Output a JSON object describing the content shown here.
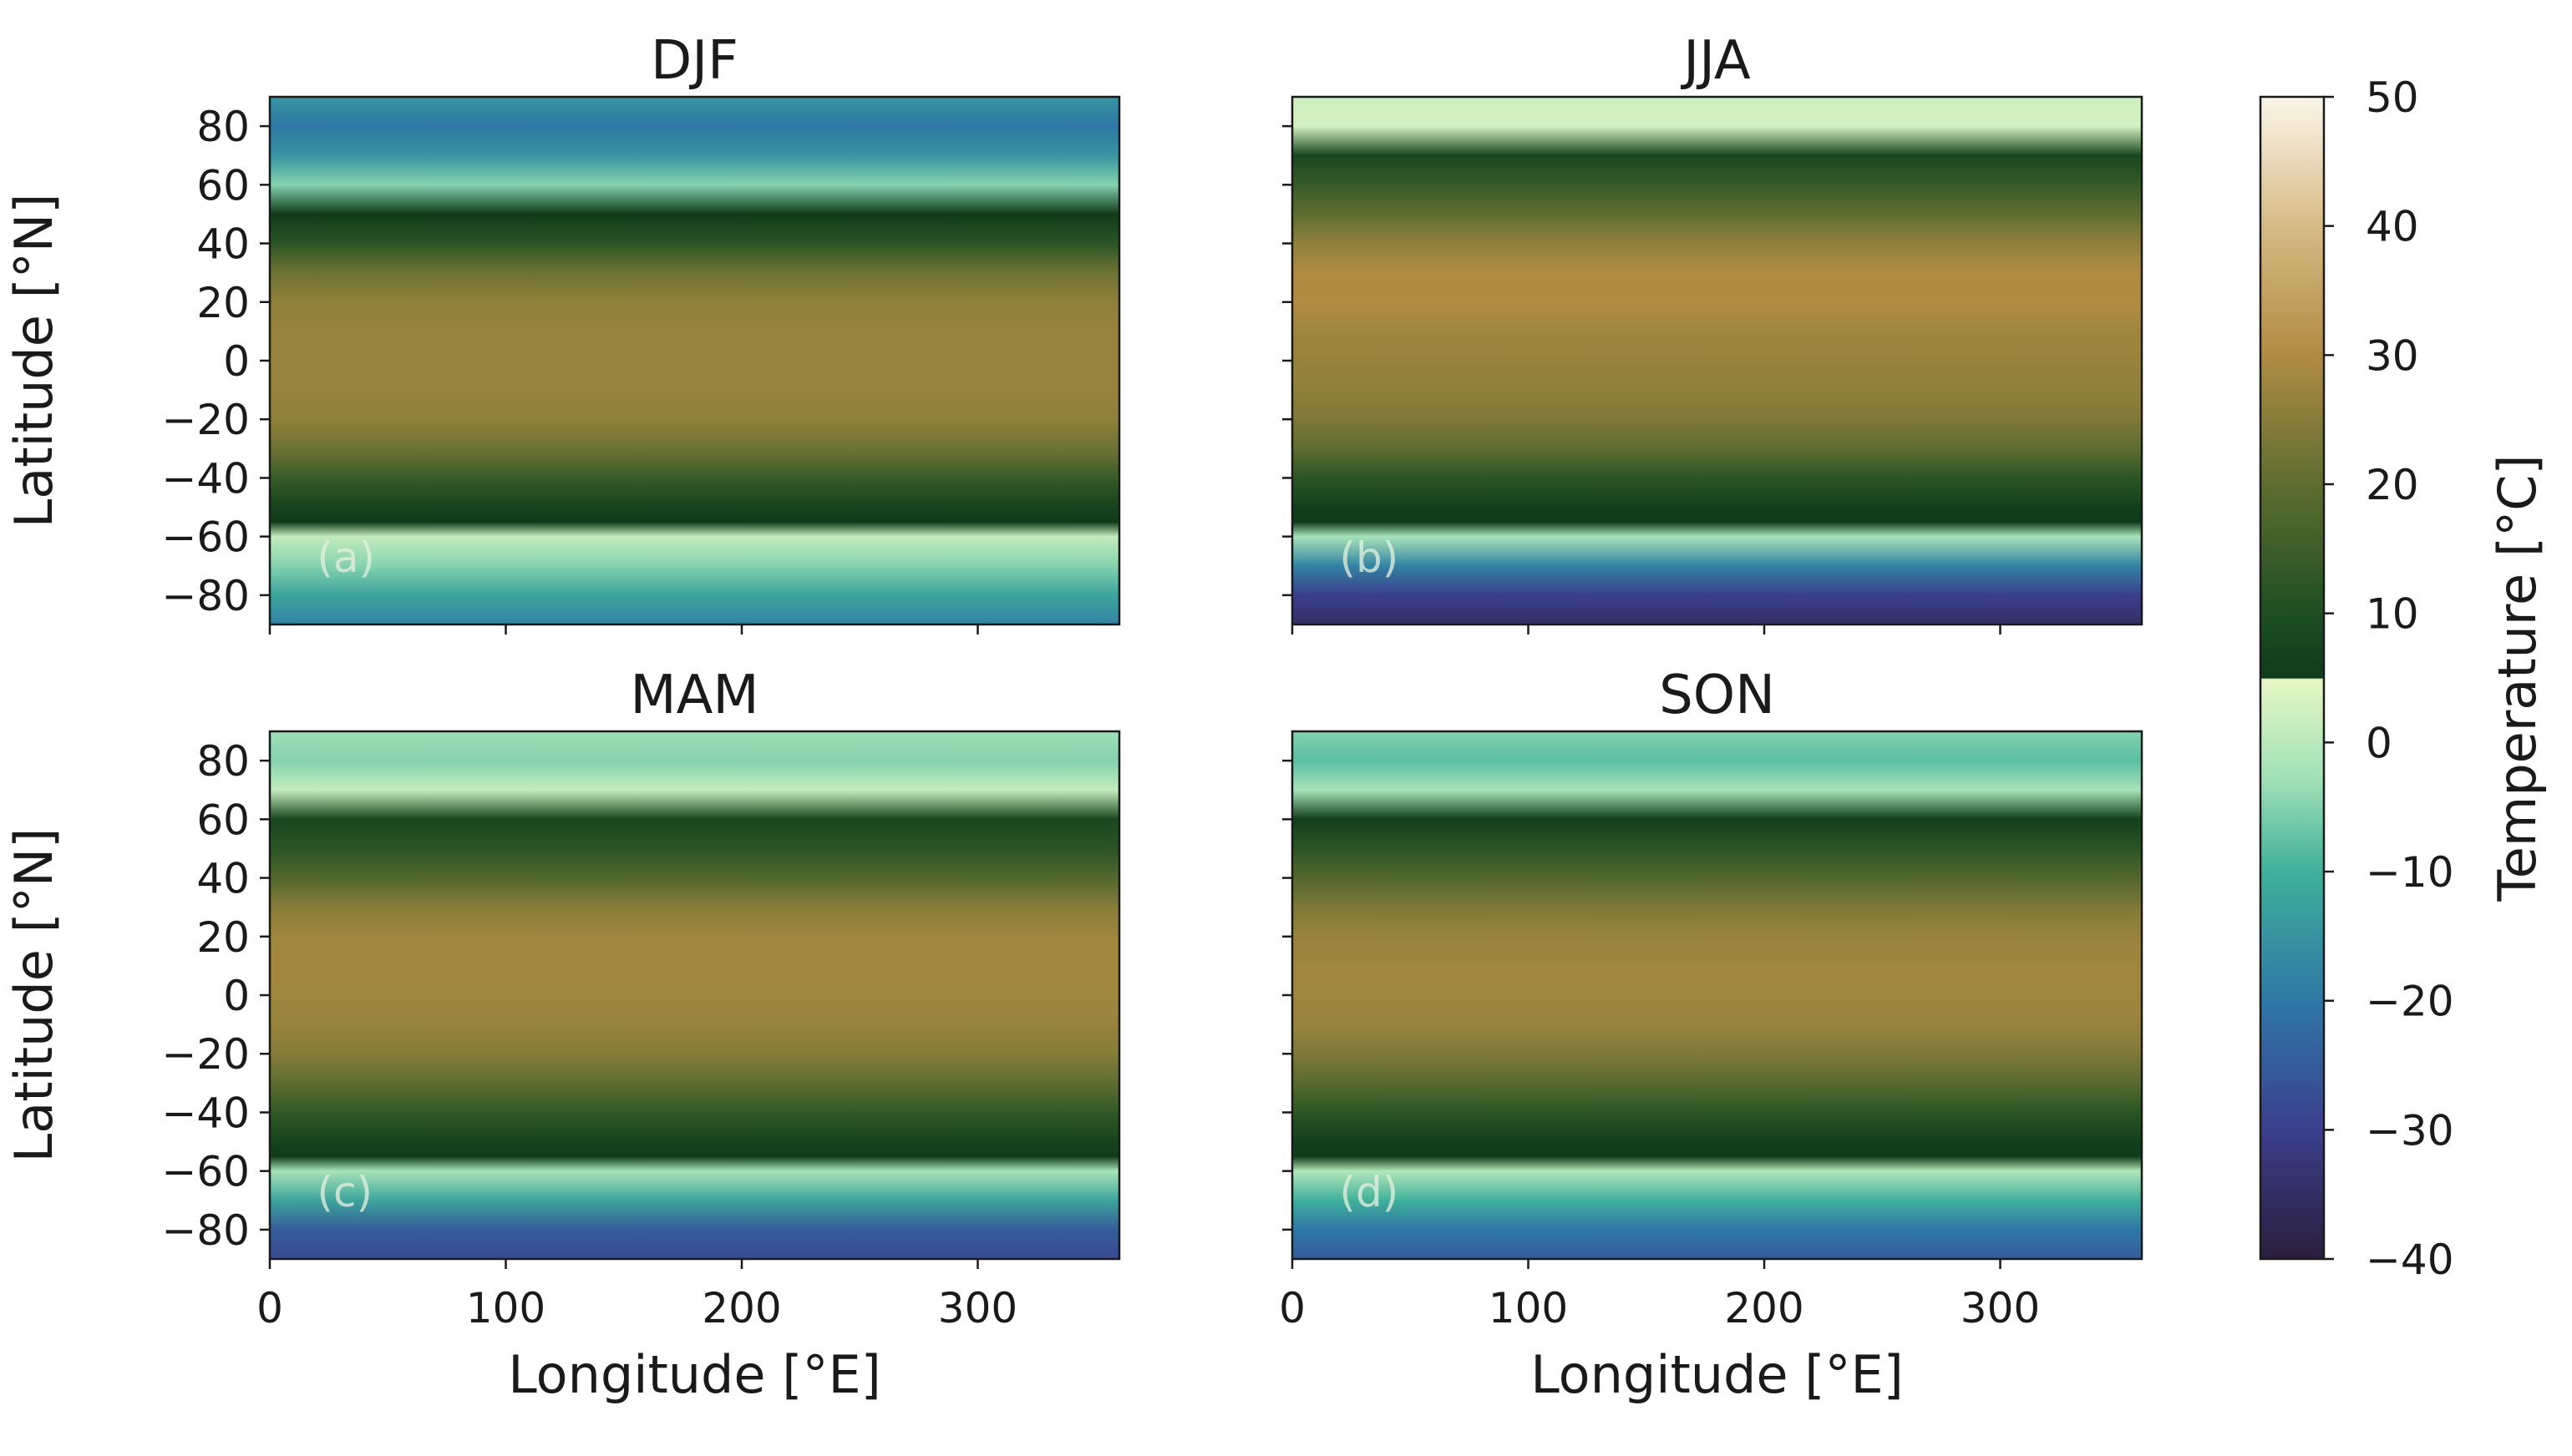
{
  "figure": {
    "colorbar": {
      "label": "Temperature [°C]",
      "ticks": [
        50,
        40,
        30,
        20,
        10,
        0,
        -10,
        -20,
        -30,
        -40
      ],
      "tick_labels": [
        "50",
        "40",
        "30",
        "20",
        "10",
        "0",
        "−10",
        "−20",
        "−30",
        "−40"
      ],
      "range": [
        -40,
        50
      ],
      "colormap_stops": [
        {
          "value": -40,
          "color": "#2a1e3c"
        },
        {
          "value": -30,
          "color": "#3b3f8c"
        },
        {
          "value": -20,
          "color": "#2f78a6"
        },
        {
          "value": -10,
          "color": "#3fb09a"
        },
        {
          "value": -3,
          "color": "#9fe0b6"
        },
        {
          "value": 4.9,
          "color": "#e6f7c4"
        },
        {
          "value": 5,
          "color": "#0f3b1a"
        },
        {
          "value": 10,
          "color": "#1e4f22"
        },
        {
          "value": 20,
          "color": "#5e6d30"
        },
        {
          "value": 30,
          "color": "#b08c43"
        },
        {
          "value": 40,
          "color": "#d7bb85"
        },
        {
          "value": 50,
          "color": "#fbf6ea"
        }
      ]
    }
  },
  "chart_data": [
    {
      "type": "heatmap",
      "title": "DJF",
      "panel_label": "(a)",
      "xlabel": "",
      "ylabel": "Latitude [°N]",
      "xlim": [
        0,
        360
      ],
      "ylim": [
        -90,
        90
      ],
      "xticks": [
        0,
        100,
        200,
        300
      ],
      "yticks": [
        80,
        60,
        40,
        20,
        0,
        -20,
        -40,
        -60,
        -80
      ],
      "ytick_labels": [
        "80",
        "60",
        "40",
        "20",
        "0",
        "−20",
        "−40",
        "−60",
        "−80"
      ],
      "zonal_temperature_profile": {
        "lat": [
          90,
          80,
          70,
          60,
          50,
          40,
          30,
          20,
          10,
          0,
          -10,
          -20,
          -30,
          -40,
          -50,
          -55,
          -60,
          -70,
          -80,
          -90
        ],
        "temp": [
          -15,
          -20,
          -15,
          -5,
          5,
          12,
          22,
          26,
          27,
          27,
          27,
          26,
          22,
          14,
          7,
          5,
          1,
          -5,
          -12,
          -18
        ]
      }
    },
    {
      "type": "heatmap",
      "title": "JJA",
      "panel_label": "(b)",
      "xlabel": "",
      "ylabel": "",
      "xlim": [
        0,
        360
      ],
      "ylim": [
        -90,
        90
      ],
      "xticks": [
        0,
        100,
        200,
        300
      ],
      "yticks": [
        80,
        60,
        40,
        20,
        0,
        -20,
        -40,
        -60,
        -80
      ],
      "zonal_temperature_profile": {
        "lat": [
          90,
          80,
          70,
          60,
          50,
          40,
          30,
          20,
          10,
          0,
          -10,
          -20,
          -30,
          -40,
          -50,
          -55,
          -60,
          -70,
          -80,
          -90
        ],
        "temp": [
          2,
          3,
          8,
          14,
          20,
          26,
          30,
          30,
          28,
          27,
          26,
          24,
          20,
          12,
          6,
          5,
          -2,
          -18,
          -30,
          -35
        ]
      }
    },
    {
      "type": "heatmap",
      "title": "MAM",
      "panel_label": "(c)",
      "xlabel": "Longitude [°E]",
      "ylabel": "Latitude [°N]",
      "xlim": [
        0,
        360
      ],
      "ylim": [
        -90,
        90
      ],
      "xticks": [
        0,
        100,
        200,
        300
      ],
      "xtick_labels": [
        "0",
        "100",
        "200",
        "300"
      ],
      "yticks": [
        80,
        60,
        40,
        20,
        0,
        -20,
        -40,
        -60,
        -80
      ],
      "ytick_labels": [
        "80",
        "60",
        "40",
        "20",
        "0",
        "−20",
        "−40",
        "−60",
        "−80"
      ],
      "zonal_temperature_profile": {
        "lat": [
          90,
          80,
          70,
          60,
          50,
          40,
          30,
          20,
          10,
          0,
          -10,
          -20,
          -30,
          -40,
          -50,
          -55,
          -60,
          -70,
          -80,
          -90
        ],
        "temp": [
          -3,
          -5,
          1,
          8,
          12,
          18,
          25,
          28,
          28,
          28,
          27,
          25,
          20,
          13,
          7,
          5,
          -2,
          -12,
          -25,
          -28
        ]
      }
    },
    {
      "type": "heatmap",
      "title": "SON",
      "panel_label": "(d)",
      "xlabel": "Longitude [°E]",
      "ylabel": "",
      "xlim": [
        0,
        360
      ],
      "ylim": [
        -90,
        90
      ],
      "xticks": [
        0,
        100,
        200,
        300
      ],
      "xtick_labels": [
        "0",
        "100",
        "200",
        "300"
      ],
      "yticks": [
        80,
        60,
        40,
        20,
        0,
        -20,
        -40,
        -60,
        -80
      ],
      "zonal_temperature_profile": {
        "lat": [
          90,
          80,
          70,
          60,
          50,
          40,
          30,
          20,
          10,
          0,
          -10,
          -20,
          -30,
          -40,
          -50,
          -55,
          -60,
          -70,
          -80,
          -90
        ],
        "temp": [
          -5,
          -8,
          -2,
          6,
          12,
          18,
          24,
          27,
          28,
          28,
          27,
          24,
          19,
          12,
          6,
          5,
          -1,
          -10,
          -20,
          -25
        ]
      }
    }
  ]
}
